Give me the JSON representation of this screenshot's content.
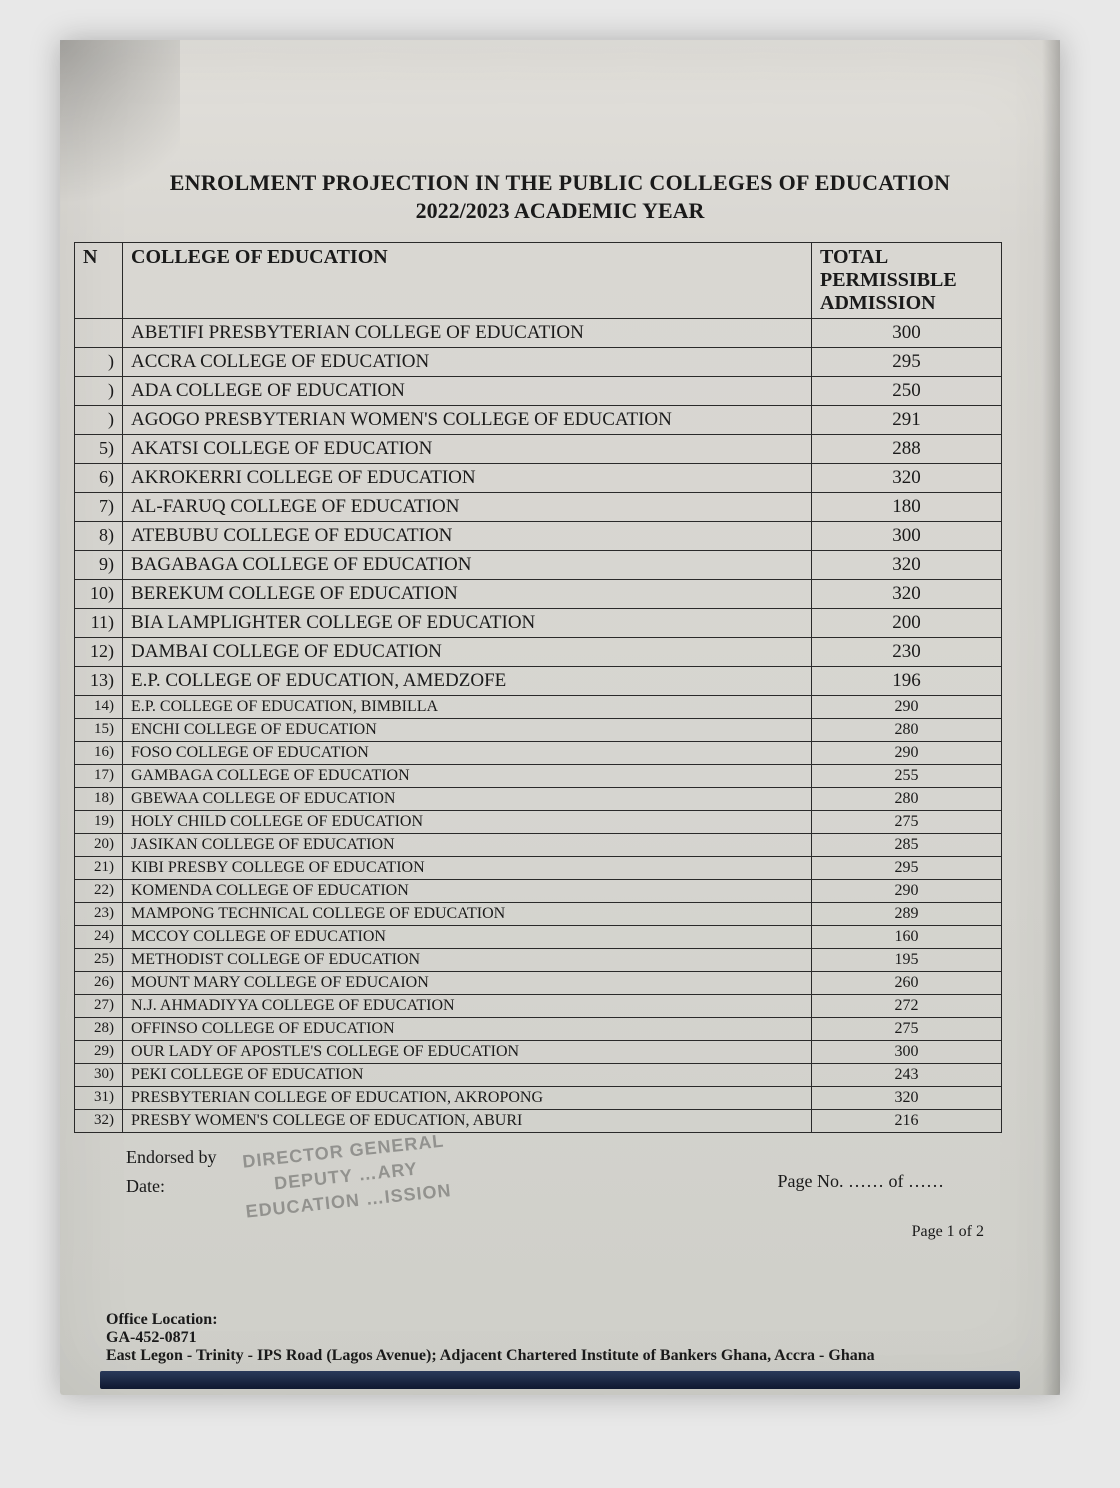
{
  "title": "ENROLMENT PROJECTION IN THE PUBLIC COLLEGES OF EDUCATION",
  "subtitle": "2022/2023 ACADEMIC YEAR",
  "columns": {
    "num": "N",
    "college": "COLLEGE OF EDUCATION",
    "total": "TOTAL PERMISSIBLE ADMISSION"
  },
  "rows": [
    {
      "n": "",
      "name": "ABETIFI PRESBYTERIAN COLLEGE OF EDUCATION",
      "total": "300",
      "big": true
    },
    {
      "n": ")",
      "name": "ACCRA COLLEGE OF EDUCATION",
      "total": "295",
      "big": true
    },
    {
      "n": ")",
      "name": "ADA COLLEGE OF EDUCATION",
      "total": "250",
      "big": true
    },
    {
      "n": ")",
      "name": "AGOGO PRESBYTERIAN WOMEN'S COLLEGE OF EDUCATION",
      "total": "291",
      "big": true
    },
    {
      "n": "5)",
      "name": "AKATSI COLLEGE OF EDUCATION",
      "total": "288",
      "big": true
    },
    {
      "n": "6)",
      "name": "AKROKERRI COLLEGE OF EDUCATION",
      "total": "320",
      "big": true
    },
    {
      "n": "7)",
      "name": "AL-FARUQ   COLLEGE OF EDUCATION",
      "total": "180",
      "big": true
    },
    {
      "n": "8)",
      "name": "ATEBUBU COLLEGE OF EDUCATION",
      "total": "300",
      "big": true
    },
    {
      "n": "9)",
      "name": "BAGABAGA COLLEGE OF EDUCATION",
      "total": "320",
      "big": true
    },
    {
      "n": "10)",
      "name": "BEREKUM COLLEGE OF EDUCATION",
      "total": "320",
      "big": true
    },
    {
      "n": "11)",
      "name": "BIA LAMPLIGHTER COLLEGE OF EDUCATION",
      "total": "200",
      "big": true
    },
    {
      "n": "12)",
      "name": "DAMBAI COLLEGE OF EDUCATION",
      "total": "230",
      "big": true
    },
    {
      "n": "13)",
      "name": "E.P. COLLEGE OF EDUCATION, AMEDZOFE",
      "total": "196",
      "big": true
    },
    {
      "n": "14)",
      "name": "E.P. COLLEGE OF EDUCATION, BIMBILLA",
      "total": "290"
    },
    {
      "n": "15)",
      "name": "ENCHI COLLEGE OF EDUCATION",
      "total": "280"
    },
    {
      "n": "16)",
      "name": "FOSO COLLEGE OF EDUCATION",
      "total": "290"
    },
    {
      "n": "17)",
      "name": "GAMBAGA COLLEGE OF EDUCATION",
      "total": "255"
    },
    {
      "n": "18)",
      "name": "GBEWAA COLLEGE OF EDUCATION",
      "total": "280"
    },
    {
      "n": "19)",
      "name": "HOLY CHILD COLLEGE OF EDUCATION",
      "total": "275"
    },
    {
      "n": "20)",
      "name": "JASIKAN COLLEGE OF EDUCATION",
      "total": "285"
    },
    {
      "n": "21)",
      "name": "KIBI PRESBY COLLEGE OF EDUCATION",
      "total": "295"
    },
    {
      "n": "22)",
      "name": "KOMENDA COLLEGE OF EDUCATION",
      "total": "290"
    },
    {
      "n": "23)",
      "name": "MAMPONG TECHNICAL COLLEGE OF EDUCATION",
      "total": "289"
    },
    {
      "n": "24)",
      "name": "MCCOY COLLEGE OF EDUCATION",
      "total": "160"
    },
    {
      "n": "25)",
      "name": "METHODIST COLLEGE OF EDUCATION",
      "total": "195"
    },
    {
      "n": "26)",
      "name": "MOUNT MARY COLLEGE OF EDUCAION",
      "total": "260"
    },
    {
      "n": "27)",
      "name": "N.J. AHMADIYYA COLLEGE OF EDUCATION",
      "total": "272"
    },
    {
      "n": "28)",
      "name": "OFFINSO COLLEGE OF EDUCATION",
      "total": "275"
    },
    {
      "n": "29)",
      "name": "OUR LADY OF APOSTLE'S COLLEGE OF EDUCATION",
      "total": "300"
    },
    {
      "n": "30)",
      "name": "PEKI COLLEGE OF EDUCATION",
      "total": "243"
    },
    {
      "n": "31)",
      "name": "PRESBYTERIAN COLLEGE OF EDUCATION, AKROPONG",
      "total": "320"
    },
    {
      "n": "32)",
      "name": "PRESBY WOMEN'S COLLEGE OF EDUCATION, ABURI",
      "total": "216"
    }
  ],
  "endorsed_label": "Endorsed by",
  "date_label": "Date:",
  "stamp_lines": [
    "DIRECTOR  GENERAL",
    "DEPUTY        …ARY",
    "EDUCATION  …ISSION"
  ],
  "page_no_label": "Page No. …… of ……",
  "page_footer": "Page 1 of 2",
  "office": {
    "heading": "Office Location:",
    "code": "GA-452-0871",
    "address": "East Legon - Trinity - IPS Road (Lagos Avenue); Adjacent Chartered Institute of Bankers Ghana, Accra - Ghana"
  }
}
